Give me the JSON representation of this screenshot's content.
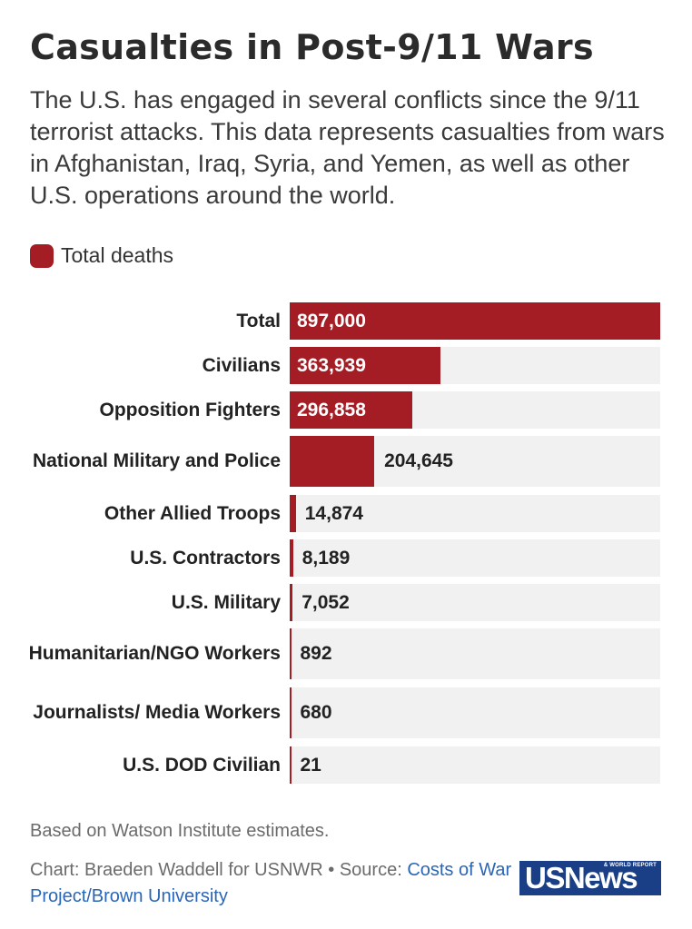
{
  "title": "Casualties in Post-9/11 Wars",
  "subtitle": "The U.S. has engaged in several conflicts since the 9/11 terrorist attacks. This data represents casualties from wars in Afghanistan, Iraq, Syria, and Yemen, as well as other U.S. operations around the world.",
  "legend": {
    "label": "Total deaths",
    "color": "#a51d24"
  },
  "colors": {
    "bar": "#a51d24",
    "track": "#f1f1f1",
    "logo_bg": "#1b3f87"
  },
  "chart_data": {
    "type": "bar",
    "orientation": "horizontal",
    "title": "Casualties in Post-9/11 Wars",
    "series": [
      {
        "name": "Total deaths"
      }
    ],
    "categories": [
      "Total",
      "Civilians",
      "Opposition Fighters",
      "National Military and Police",
      "Other Allied Troops",
      "U.S. Contractors",
      "U.S. Military",
      "Humanitarian/NGO Workers",
      "Journalists/ Media Workers",
      "U.S. DOD Civilian"
    ],
    "values": [
      897000,
      363939,
      296858,
      204645,
      14874,
      8189,
      7052,
      892,
      680,
      21
    ],
    "value_labels": [
      "897,000",
      "363,939",
      "296,858",
      "204,645",
      "14,874",
      "8,189",
      "7,052",
      "892",
      "680",
      "21"
    ],
    "xlim": [
      0,
      897000
    ]
  },
  "footer": {
    "note": "Based on Watson Institute estimates.",
    "credit": "Chart: Braeden Waddell for USNWR • Source: ",
    "source_link": "Costs of War Project/Brown University"
  },
  "logo": {
    "main": "USNews",
    "sub": "& WORLD REPORT"
  }
}
